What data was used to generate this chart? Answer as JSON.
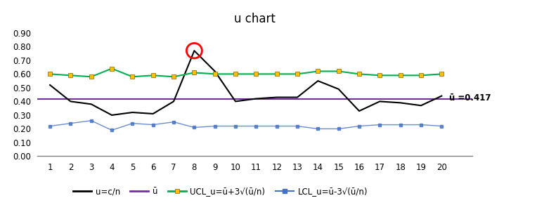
{
  "title": "u chart",
  "x": [
    1,
    2,
    3,
    4,
    5,
    6,
    7,
    8,
    9,
    10,
    11,
    12,
    13,
    14,
    15,
    16,
    17,
    18,
    19,
    20
  ],
  "u": [
    0.52,
    0.4,
    0.38,
    0.3,
    0.32,
    0.31,
    0.4,
    0.77,
    0.62,
    0.4,
    0.42,
    0.43,
    0.43,
    0.55,
    0.49,
    0.33,
    0.4,
    0.39,
    0.37,
    0.44
  ],
  "u_bar": 0.417,
  "UCL": [
    0.6,
    0.59,
    0.58,
    0.64,
    0.58,
    0.59,
    0.58,
    0.61,
    0.6,
    0.6,
    0.6,
    0.6,
    0.6,
    0.62,
    0.62,
    0.6,
    0.59,
    0.59,
    0.59,
    0.6
  ],
  "LCL": [
    0.22,
    0.24,
    0.26,
    0.19,
    0.24,
    0.23,
    0.25,
    0.21,
    0.22,
    0.22,
    0.22,
    0.22,
    0.22,
    0.2,
    0.2,
    0.22,
    0.23,
    0.23,
    0.23,
    0.22
  ],
  "u_color": "#000000",
  "u_bar_color": "#7030A0",
  "UCL_color": "#00B050",
  "LCL_color": "#4472C4",
  "UCL_marker_color": "#FFC000",
  "LCL_marker_color": "#4472C4",
  "out_of_control_point": 8,
  "circle_color": "red",
  "ylim": [
    0.0,
    0.95
  ],
  "yticks": [
    0.0,
    0.1,
    0.2,
    0.3,
    0.4,
    0.5,
    0.6,
    0.7,
    0.8,
    0.9
  ],
  "legend_labels": [
    "u=c/n",
    "ū",
    "UCL_u=ū+3√(ū/n)",
    "LCL_u=ū-3√(ū/n)"
  ],
  "ubar_label": "ū =0.417",
  "background_color": "#ffffff",
  "figsize": [
    7.64,
    3.09
  ],
  "dpi": 100
}
